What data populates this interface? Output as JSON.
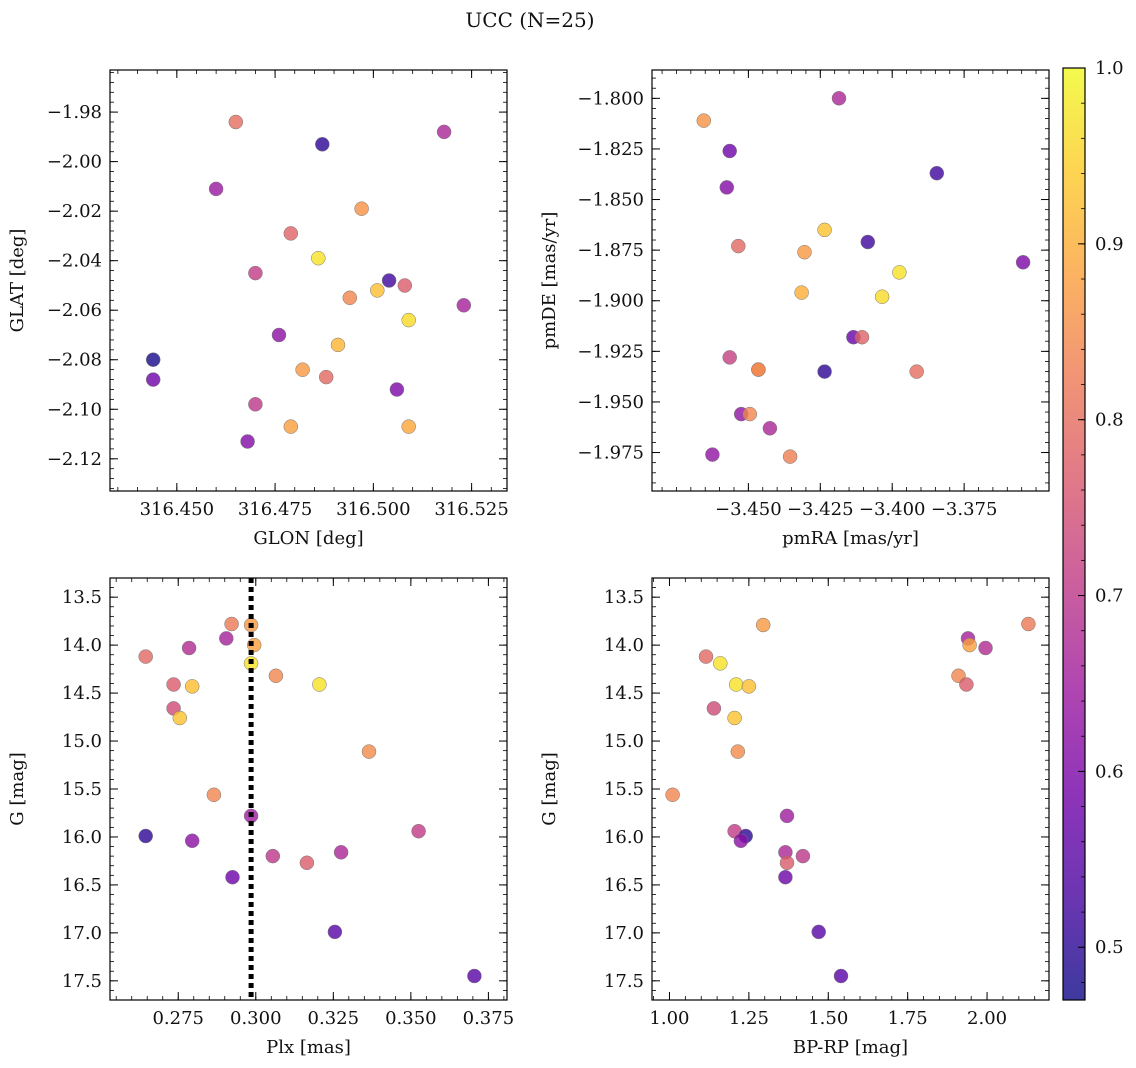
{
  "title": "UCC (N=25)",
  "colormap": {
    "name": "plasma",
    "stops": [
      "#0d0887",
      "#46039f",
      "#7201a8",
      "#9c179e",
      "#bd3786",
      "#d8576b",
      "#ed7953",
      "#fb9f3a",
      "#fdca26",
      "#f0f921"
    ],
    "range": [
      0.47,
      1.0
    ],
    "ticks": [
      0.5,
      0.6,
      0.7,
      0.8,
      0.9,
      1.0
    ],
    "tick_labels": [
      "0.5",
      "0.6",
      "0.7",
      "0.8",
      "0.9",
      "1.0"
    ],
    "alpha": 0.8
  },
  "chart_data": [
    {
      "type": "scatter",
      "xlabel": "GLON [deg]",
      "ylabel": "GLAT [deg]",
      "xlim": [
        316.433,
        316.534
      ],
      "ylim": [
        -2.133,
        -1.963
      ],
      "xticks": [
        316.45,
        316.475,
        316.5,
        316.525
      ],
      "xtick_labels": [
        "316.450",
        "316.475",
        "316.500",
        "316.525"
      ],
      "yticks": [
        -1.98,
        -2.0,
        -2.02,
        -2.04,
        -2.06,
        -2.08,
        -2.1,
        -2.12
      ],
      "ytick_labels": [
        "−1.98",
        "−2.00",
        "−2.02",
        "−2.04",
        "−2.06",
        "−2.08",
        "−2.10",
        "−2.12"
      ],
      "yinvert": false,
      "vline": null,
      "points": [
        {
          "x": 316.465,
          "y": -1.984,
          "c": 0.8
        },
        {
          "x": 316.487,
          "y": -1.993,
          "c": 0.5
        },
        {
          "x": 316.518,
          "y": -1.988,
          "c": 0.67
        },
        {
          "x": 316.46,
          "y": -2.011,
          "c": 0.64
        },
        {
          "x": 316.497,
          "y": -2.019,
          "c": 0.86
        },
        {
          "x": 316.479,
          "y": -2.029,
          "c": 0.78
        },
        {
          "x": 316.486,
          "y": -2.039,
          "c": 0.97
        },
        {
          "x": 316.47,
          "y": -2.045,
          "c": 0.71
        },
        {
          "x": 316.504,
          "y": -2.048,
          "c": 0.52
        },
        {
          "x": 316.508,
          "y": -2.05,
          "c": 0.77
        },
        {
          "x": 316.494,
          "y": -2.055,
          "c": 0.84
        },
        {
          "x": 316.501,
          "y": -2.052,
          "c": 0.92
        },
        {
          "x": 316.523,
          "y": -2.058,
          "c": 0.66
        },
        {
          "x": 316.509,
          "y": -2.064,
          "c": 0.96
        },
        {
          "x": 316.476,
          "y": -2.07,
          "c": 0.62
        },
        {
          "x": 316.491,
          "y": -2.074,
          "c": 0.91
        },
        {
          "x": 316.444,
          "y": -2.08,
          "c": 0.48
        },
        {
          "x": 316.482,
          "y": -2.084,
          "c": 0.87
        },
        {
          "x": 316.488,
          "y": -2.087,
          "c": 0.79
        },
        {
          "x": 316.444,
          "y": -2.088,
          "c": 0.58
        },
        {
          "x": 316.506,
          "y": -2.092,
          "c": 0.6
        },
        {
          "x": 316.47,
          "y": -2.098,
          "c": 0.7
        },
        {
          "x": 316.479,
          "y": -2.107,
          "c": 0.88
        },
        {
          "x": 316.509,
          "y": -2.107,
          "c": 0.89
        },
        {
          "x": 316.468,
          "y": -2.113,
          "c": 0.61
        }
      ]
    },
    {
      "type": "scatter",
      "xlabel": "pmRA [mas/yr]",
      "ylabel": "pmDE [mas/yr]",
      "xlim": [
        -3.4835,
        -3.3455
      ],
      "ylim": [
        -1.994,
        -1.786
      ],
      "xticks": [
        -3.45,
        -3.425,
        -3.4,
        -3.375
      ],
      "xtick_labels": [
        "−3.450",
        "−3.425",
        "−3.400",
        "−3.375"
      ],
      "yticks": [
        -1.8,
        -1.825,
        -1.85,
        -1.875,
        -1.9,
        -1.925,
        -1.95,
        -1.975
      ],
      "ytick_labels": [
        "−1.800",
        "−1.825",
        "−1.850",
        "−1.875",
        "−1.900",
        "−1.925",
        "−1.950",
        "−1.975"
      ],
      "yinvert": false,
      "vline": null,
      "points": [
        {
          "x": -3.4185,
          "y": -1.8,
          "c": 0.67
        },
        {
          "x": -3.4655,
          "y": -1.811,
          "c": 0.86
        },
        {
          "x": -3.4565,
          "y": -1.826,
          "c": 0.58
        },
        {
          "x": -3.3845,
          "y": -1.837,
          "c": 0.52
        },
        {
          "x": -3.4575,
          "y": -1.844,
          "c": 0.61
        },
        {
          "x": -3.4235,
          "y": -1.865,
          "c": 0.93
        },
        {
          "x": -3.4535,
          "y": -1.873,
          "c": 0.79
        },
        {
          "x": -3.4085,
          "y": -1.871,
          "c": 0.52
        },
        {
          "x": -3.4305,
          "y": -1.876,
          "c": 0.87
        },
        {
          "x": -3.3545,
          "y": -1.881,
          "c": 0.6
        },
        {
          "x": -3.3975,
          "y": -1.886,
          "c": 0.97
        },
        {
          "x": -3.4315,
          "y": -1.896,
          "c": 0.9
        },
        {
          "x": -3.4035,
          "y": -1.898,
          "c": 0.96
        },
        {
          "x": -3.4135,
          "y": -1.918,
          "c": 0.57
        },
        {
          "x": -3.4105,
          "y": -1.918,
          "c": 0.78
        },
        {
          "x": -3.4565,
          "y": -1.928,
          "c": 0.72
        },
        {
          "x": -3.4465,
          "y": -1.934,
          "c": 0.85
        },
        {
          "x": -3.4235,
          "y": -1.935,
          "c": 0.5
        },
        {
          "x": -3.3915,
          "y": -1.935,
          "c": 0.8
        },
        {
          "x": -3.4525,
          "y": -1.956,
          "c": 0.63
        },
        {
          "x": -3.4495,
          "y": -1.956,
          "c": 0.84
        },
        {
          "x": -3.4425,
          "y": -1.963,
          "c": 0.67
        },
        {
          "x": -3.4625,
          "y": -1.976,
          "c": 0.63
        },
        {
          "x": -3.4355,
          "y": -1.977,
          "c": 0.83
        },
        {
          "x": -3.4465,
          "y": -1.934,
          "c": 0.84
        }
      ]
    },
    {
      "type": "scatter",
      "xlabel": "Plx [mas]",
      "ylabel": "G [mag]",
      "xlim": [
        0.253,
        0.381
      ],
      "ylim": [
        17.7,
        13.3
      ],
      "xticks": [
        0.275,
        0.3,
        0.325,
        0.35,
        0.375
      ],
      "xtick_labels": [
        "0.275",
        "0.300",
        "0.325",
        "0.350",
        "0.375"
      ],
      "yticks": [
        13.5,
        14.0,
        14.5,
        15.0,
        15.5,
        16.0,
        16.5,
        17.0,
        17.5
      ],
      "ytick_labels": [
        "13.5",
        "14.0",
        "14.5",
        "15.0",
        "15.5",
        "16.0",
        "16.5",
        "17.0",
        "17.5"
      ],
      "yinvert": true,
      "vline": 0.2985,
      "points": [
        {
          "x": 0.2922,
          "y": 13.78,
          "c": 0.82
        },
        {
          "x": 0.2985,
          "y": 13.79,
          "c": 0.87
        },
        {
          "x": 0.2905,
          "y": 13.93,
          "c": 0.66
        },
        {
          "x": 0.2995,
          "y": 14.0,
          "c": 0.88
        },
        {
          "x": 0.2785,
          "y": 14.03,
          "c": 0.68
        },
        {
          "x": 0.2645,
          "y": 14.12,
          "c": 0.79
        },
        {
          "x": 0.2985,
          "y": 14.19,
          "c": 0.97
        },
        {
          "x": 0.3065,
          "y": 14.32,
          "c": 0.84
        },
        {
          "x": 0.2735,
          "y": 14.41,
          "c": 0.77
        },
        {
          "x": 0.3205,
          "y": 14.41,
          "c": 0.97
        },
        {
          "x": 0.2795,
          "y": 14.43,
          "c": 0.92
        },
        {
          "x": 0.2735,
          "y": 14.66,
          "c": 0.74
        },
        {
          "x": 0.2755,
          "y": 14.76,
          "c": 0.93
        },
        {
          "x": 0.3365,
          "y": 15.11,
          "c": 0.85
        },
        {
          "x": 0.2865,
          "y": 15.56,
          "c": 0.84
        },
        {
          "x": 0.2985,
          "y": 15.78,
          "c": 0.65
        },
        {
          "x": 0.3525,
          "y": 15.94,
          "c": 0.71
        },
        {
          "x": 0.2645,
          "y": 15.99,
          "c": 0.5
        },
        {
          "x": 0.2795,
          "y": 16.04,
          "c": 0.62
        },
        {
          "x": 0.3275,
          "y": 16.16,
          "c": 0.67
        },
        {
          "x": 0.3055,
          "y": 16.2,
          "c": 0.7
        },
        {
          "x": 0.3165,
          "y": 16.27,
          "c": 0.77
        },
        {
          "x": 0.2925,
          "y": 16.42,
          "c": 0.58
        },
        {
          "x": 0.3255,
          "y": 16.99,
          "c": 0.55
        },
        {
          "x": 0.3705,
          "y": 17.45,
          "c": 0.55
        }
      ]
    },
    {
      "type": "scatter",
      "xlabel": "BP-RP [mag]",
      "ylabel": "G [mag]",
      "xlim": [
        0.945,
        2.195
      ],
      "ylim": [
        17.7,
        13.3
      ],
      "xticks": [
        1.0,
        1.25,
        1.5,
        1.75,
        2.0
      ],
      "xtick_labels": [
        "1.00",
        "1.25",
        "1.50",
        "1.75",
        "2.00"
      ],
      "yticks": [
        13.5,
        14.0,
        14.5,
        15.0,
        15.5,
        16.0,
        16.5,
        17.0,
        17.5
      ],
      "ytick_labels": [
        "13.5",
        "14.0",
        "14.5",
        "15.0",
        "15.5",
        "16.0",
        "16.5",
        "17.0",
        "17.5"
      ],
      "yinvert": true,
      "vline": null,
      "points": [
        {
          "x": 2.13,
          "y": 13.78,
          "c": 0.82
        },
        {
          "x": 1.295,
          "y": 13.79,
          "c": 0.87
        },
        {
          "x": 1.94,
          "y": 13.93,
          "c": 0.66
        },
        {
          "x": 1.945,
          "y": 14.0,
          "c": 0.88
        },
        {
          "x": 1.995,
          "y": 14.03,
          "c": 0.68
        },
        {
          "x": 1.115,
          "y": 14.12,
          "c": 0.79
        },
        {
          "x": 1.16,
          "y": 14.19,
          "c": 0.97
        },
        {
          "x": 1.91,
          "y": 14.32,
          "c": 0.84
        },
        {
          "x": 1.935,
          "y": 14.41,
          "c": 0.77
        },
        {
          "x": 1.21,
          "y": 14.41,
          "c": 0.97
        },
        {
          "x": 1.25,
          "y": 14.43,
          "c": 0.92
        },
        {
          "x": 1.14,
          "y": 14.66,
          "c": 0.74
        },
        {
          "x": 1.205,
          "y": 14.76,
          "c": 0.93
        },
        {
          "x": 1.215,
          "y": 15.11,
          "c": 0.85
        },
        {
          "x": 1.01,
          "y": 15.56,
          "c": 0.84
        },
        {
          "x": 1.37,
          "y": 15.78,
          "c": 0.65
        },
        {
          "x": 1.205,
          "y": 15.94,
          "c": 0.71
        },
        {
          "x": 1.24,
          "y": 15.99,
          "c": 0.5
        },
        {
          "x": 1.225,
          "y": 16.04,
          "c": 0.62
        },
        {
          "x": 1.365,
          "y": 16.16,
          "c": 0.67
        },
        {
          "x": 1.42,
          "y": 16.2,
          "c": 0.7
        },
        {
          "x": 1.37,
          "y": 16.27,
          "c": 0.77
        },
        {
          "x": 1.365,
          "y": 16.42,
          "c": 0.58
        },
        {
          "x": 1.47,
          "y": 16.99,
          "c": 0.55
        },
        {
          "x": 1.54,
          "y": 17.45,
          "c": 0.55
        }
      ]
    }
  ]
}
